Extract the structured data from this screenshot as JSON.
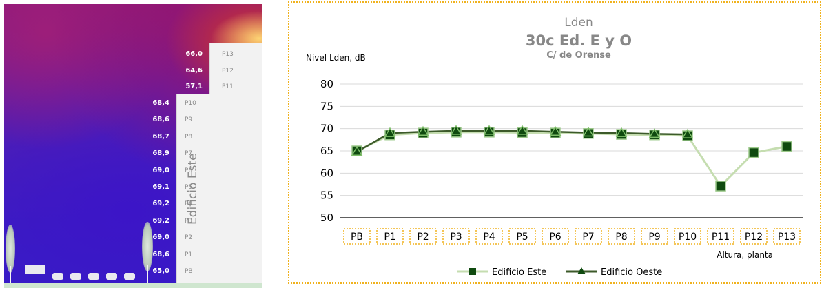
{
  "map": {
    "west_building": {
      "values": [
        "66,0",
        "64,6",
        "57,1"
      ],
      "floors": [
        "P13",
        "P12",
        "P11"
      ]
    },
    "east_building": {
      "values": [
        "68,4",
        "68,6",
        "68,7",
        "68,9",
        "69,0",
        "69,1",
        "69,2",
        "69,2",
        "69,0",
        "68,6",
        "65,0"
      ],
      "floors": [
        "P10",
        "P9",
        "P8",
        "P7",
        "P6",
        "P5",
        "P4",
        "P3",
        "P2",
        "P1",
        "PB"
      ],
      "label": "Edificio Este"
    }
  },
  "chart_data": {
    "type": "line",
    "title_lines": [
      "Lden",
      "30c Ed. E y O",
      "C/ de Orense"
    ],
    "ylabel": "Nivel Lden, dB",
    "xlabel": "Altura, planta",
    "categories": [
      "PB",
      "P1",
      "P2",
      "P3",
      "P4",
      "P5",
      "P6",
      "P7",
      "P8",
      "P9",
      "P10",
      "P11",
      "P12",
      "P13"
    ],
    "ylim": [
      50,
      80
    ],
    "yticks": [
      50,
      55,
      60,
      65,
      70,
      75,
      80
    ],
    "grid": true,
    "legend_position": "bottom",
    "series": [
      {
        "name": "Edificio Este",
        "marker": "square",
        "line_color": "#c5ddb0",
        "marker_color": "#0f4a0f",
        "values": [
          65.0,
          68.6,
          69.0,
          69.2,
          69.2,
          69.1,
          69.0,
          68.9,
          68.7,
          68.6,
          68.4,
          57.1,
          64.6,
          66.0
        ]
      },
      {
        "name": "Edificio Oeste",
        "marker": "triangle",
        "line_color": "#3c5a2a",
        "marker_color": "#0f4a0f",
        "values": [
          64.8,
          69.0,
          69.3,
          69.5,
          69.5,
          69.5,
          69.3,
          69.1,
          69.0,
          68.8,
          68.7,
          null,
          null,
          null
        ]
      }
    ]
  }
}
